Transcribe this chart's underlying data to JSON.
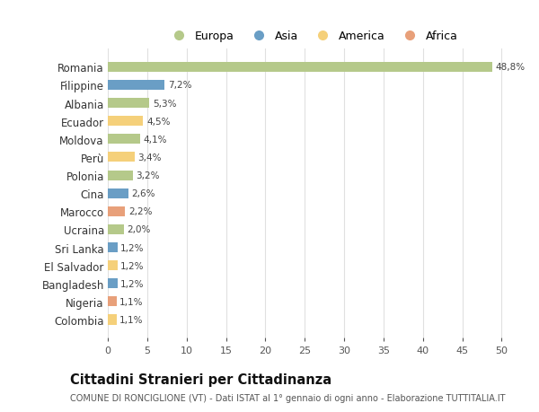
{
  "countries": [
    "Romania",
    "Filippine",
    "Albania",
    "Ecuador",
    "Moldova",
    "Perù",
    "Polonia",
    "Cina",
    "Marocco",
    "Ucraina",
    "Sri Lanka",
    "El Salvador",
    "Bangladesh",
    "Nigeria",
    "Colombia"
  ],
  "values": [
    48.8,
    7.2,
    5.3,
    4.5,
    4.1,
    3.4,
    3.2,
    2.6,
    2.2,
    2.0,
    1.2,
    1.2,
    1.2,
    1.1,
    1.1
  ],
  "labels": [
    "48,8%",
    "7,2%",
    "5,3%",
    "4,5%",
    "4,1%",
    "3,4%",
    "3,2%",
    "2,6%",
    "2,2%",
    "2,0%",
    "1,2%",
    "1,2%",
    "1,2%",
    "1,1%",
    "1,1%"
  ],
  "colors": [
    "#b5c98a",
    "#6a9ec5",
    "#b5c98a",
    "#f5d07a",
    "#b5c98a",
    "#f5d07a",
    "#b5c98a",
    "#6a9ec5",
    "#e8a07a",
    "#b5c98a",
    "#6a9ec5",
    "#f5d07a",
    "#6a9ec5",
    "#e8a07a",
    "#f5d07a"
  ],
  "legend_labels": [
    "Europa",
    "Asia",
    "America",
    "Africa"
  ],
  "legend_colors": [
    "#b5c98a",
    "#6a9ec5",
    "#f5d07a",
    "#e8a07a"
  ],
  "title": "Cittadini Stranieri per Cittadinanza",
  "subtitle": "COMUNE DI RONCIGLIONE (VT) - Dati ISTAT al 1° gennaio di ogni anno - Elaborazione TUTTITALIA.IT",
  "xlim": [
    0,
    52
  ],
  "xticks": [
    0,
    5,
    10,
    15,
    20,
    25,
    30,
    35,
    40,
    45,
    50
  ],
  "bg_color": "#ffffff",
  "grid_color": "#e0e0e0",
  "bar_height": 0.55
}
